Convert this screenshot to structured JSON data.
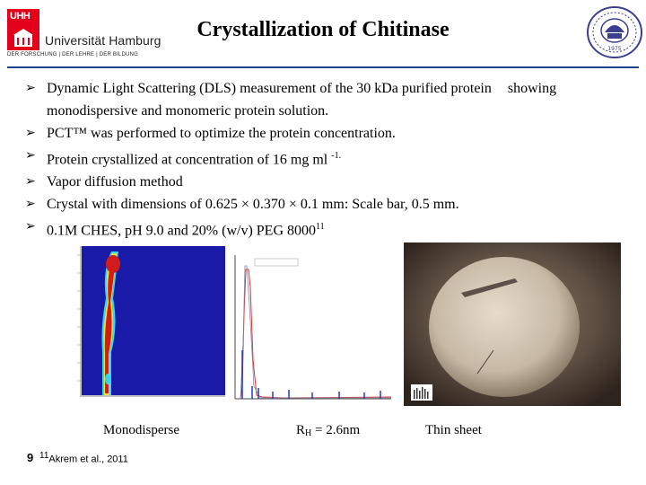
{
  "header": {
    "title": "Crystallization of Chitinase",
    "left_logo": {
      "icon": "uhh-logo-icon",
      "mark_text": "UHH",
      "name": "Universität Hamburg",
      "motto": "DER FORSCHUNG | DER LEHRE | DER BILDUNG",
      "accent": "#e2001a"
    },
    "right_logo": {
      "icon": "university-seal-icon",
      "year": "1975"
    },
    "rule_color": "#1f3f8f"
  },
  "bullets": [
    {
      "text": "Dynamic Light Scattering (DLS) measurement of the 30 kDa purified protein",
      "continuation": "showing",
      "line2": "monodispersive and monomeric protein solution."
    },
    {
      "text": "PCT™ was performed to optimize the protein concentration."
    },
    {
      "text": "Protein crystallized at concentration of 16 mg ml",
      "sup": "-1."
    },
    {
      "text": "Vapor diffusion method"
    },
    {
      "text": "Crystal with dimensions of 0.625 × 0.370 × 0.1 mm: Scale bar, 0.5 mm."
    },
    {
      "text": "0.1M CHES, pH 9.0 and 20% (w/v) PEG 8000",
      "sup": "11"
    }
  ],
  "figures": {
    "heatmap": {
      "icon": "dls-heatmap-image",
      "colors": [
        "#1a1aa8",
        "#d21b1b",
        "#ffde2d",
        "#36d6f0"
      ]
    },
    "dls_plot": {
      "icon": "dls-distribution-plot"
    },
    "crystal": {
      "icon": "crystal-drop-photo"
    }
  },
  "captions": {
    "monodisperse": "Monodisperse",
    "rh_prefix": "R",
    "rh_sub": "H",
    "rh_value": " = 2.6nm",
    "thin_sheet": "Thin sheet"
  },
  "footer": {
    "page_number": "9",
    "footnote_sup": "11",
    "footnote": "Akrem et al., 2011"
  }
}
